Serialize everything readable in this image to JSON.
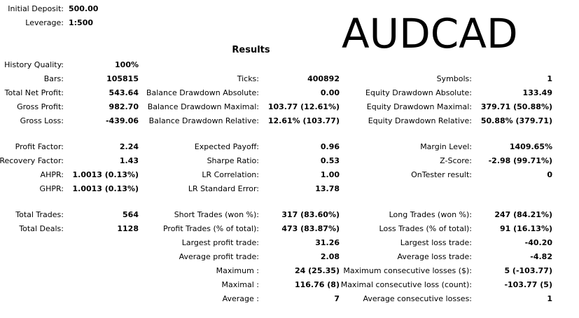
{
  "symbol": "AUDCAD",
  "results_title": "Results",
  "header": [
    {
      "label": "Initial Deposit:",
      "value": "500.00"
    },
    {
      "label": "Leverage:",
      "value": "1:500"
    }
  ],
  "col1": [
    {
      "label": "History Quality:",
      "value": "100%"
    },
    {
      "label": "Bars:",
      "value": "105815"
    },
    {
      "label": "Total Net Profit:",
      "value": "543.64"
    },
    {
      "label": "Gross Profit:",
      "value": "982.70"
    },
    {
      "label": "Gross Loss:",
      "value": "-439.06"
    },
    {
      "label": "Profit Factor:",
      "value": "2.24"
    },
    {
      "label": "Recovery Factor:",
      "value": "1.43"
    },
    {
      "label": "AHPR:",
      "value": "1.0013 (0.13%)"
    },
    {
      "label": "GHPR:",
      "value": "1.0013 (0.13%)"
    },
    {
      "label": "Total Trades:",
      "value": "564"
    },
    {
      "label": "Total Deals:",
      "value": "1128"
    }
  ],
  "col2": [
    {
      "label": "Ticks:",
      "value": "400892"
    },
    {
      "label": "Balance Drawdown Absolute:",
      "value": "0.00"
    },
    {
      "label": "Balance Drawdown Maximal:",
      "value": "103.77 (12.61%)"
    },
    {
      "label": "Balance Drawdown Relative:",
      "value": "12.61% (103.77)"
    },
    {
      "label": "Expected Payoff:",
      "value": "0.96"
    },
    {
      "label": "Sharpe Ratio:",
      "value": "0.53"
    },
    {
      "label": "LR Correlation:",
      "value": "1.00"
    },
    {
      "label": "LR Standard Error:",
      "value": "13.78"
    },
    {
      "label": "Short Trades (won %):",
      "value": "317 (83.60%)"
    },
    {
      "label": "Profit Trades (% of total):",
      "value": "473 (83.87%)"
    },
    {
      "label": "Largest profit trade:",
      "value": "31.26"
    },
    {
      "label": "Average profit trade:",
      "value": "2.08"
    },
    {
      "label": "Maximum :",
      "value": "24 (25.35)"
    },
    {
      "label": "Maximal :",
      "value": "116.76 (8)"
    },
    {
      "label": "Average :",
      "value": "7"
    }
  ],
  "col3": [
    {
      "label": "Symbols:",
      "value": "1"
    },
    {
      "label": "Equity Drawdown Absolute:",
      "value": "133.49"
    },
    {
      "label": "Equity Drawdown Maximal:",
      "value": "379.71 (50.88%)"
    },
    {
      "label": "Equity Drawdown Relative:",
      "value": "50.88% (379.71)"
    },
    {
      "label": "Margin Level:",
      "value": "1409.65%"
    },
    {
      "label": "Z-Score:",
      "value": "-2.98 (99.71%)"
    },
    {
      "label": "OnTester result:",
      "value": "0"
    },
    {
      "label": "Long Trades (won %):",
      "value": "247 (84.21%)"
    },
    {
      "label": "Loss Trades (% of total):",
      "value": "91 (16.13%)"
    },
    {
      "label": "Largest loss trade:",
      "value": "-40.20"
    },
    {
      "label": "Average loss trade:",
      "value": "-4.82"
    },
    {
      "label": "Maximum consecutive losses ($):",
      "value": "5 (-103.77)"
    },
    {
      "label": "Maximal consecutive loss (count):",
      "value": "-103.77 (5)"
    },
    {
      "label": "Average consecutive losses:",
      "value": "1"
    }
  ]
}
